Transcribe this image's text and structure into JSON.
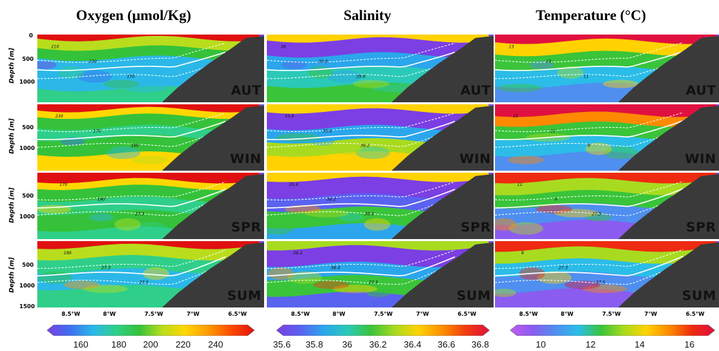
{
  "columns": [
    {
      "title": "Oxygen (μmol/Kg)",
      "colorbar": [
        "160",
        "180",
        "200",
        "220",
        "240"
      ]
    },
    {
      "title": "Salinity",
      "colorbar": [
        "35.6",
        "35.8",
        "36",
        "36.2",
        "36.4",
        "36.6",
        "36.8"
      ]
    },
    {
      "title": "Temperature (°C)",
      "colorbar": [
        "10",
        "12",
        "14",
        "16"
      ]
    }
  ],
  "seasons": [
    "AUT",
    "WIN",
    "SPR",
    "SUM"
  ],
  "depth_axis": {
    "label": "Depth [m]",
    "ticks_top": [
      "0",
      "500",
      "1000"
    ],
    "ticks_mid": [
      "500",
      "1000"
    ],
    "ticks_bottom": [
      "500",
      "1000",
      "1500"
    ]
  },
  "longitudes": [
    "8.5°W",
    "8°W",
    "7.5°W",
    "7°W",
    "6.5°W"
  ],
  "contour_labels": {
    "oxygen": [
      "210",
      "230",
      "170",
      "190",
      "27.3",
      "27.5",
      "27.6"
    ],
    "salinity": [
      "36",
      "35.8",
      "35.6",
      "36.2",
      "36.4",
      "27.3",
      "27.5",
      "27.6"
    ],
    "temperature": [
      "13",
      "15",
      "11",
      "9",
      "27.3",
      "27.5",
      "27.6"
    ]
  },
  "colors": {
    "oxygen_scale": [
      "#7b3fe4",
      "#3f6ff0",
      "#2bb8e8",
      "#2fcf8a",
      "#35c23a",
      "#b9dd1c",
      "#ffd700",
      "#ff9a00",
      "#ff4a00",
      "#e01010"
    ],
    "salinity_scale": [
      "#7b3fe4",
      "#5a62f0",
      "#2ba6ec",
      "#2bc9b8",
      "#3ac43a",
      "#a8db1f",
      "#ffd200",
      "#ff9000",
      "#f03c10",
      "#e0103c"
    ],
    "temperature_scale": [
      "#c05cf0",
      "#8a5cf0",
      "#4f8ff0",
      "#2bbde8",
      "#3ac43a",
      "#a8db1f",
      "#ffd200",
      "#ff8a00",
      "#ee2a10",
      "#e01040"
    ],
    "topography": "#3a3a3a"
  }
}
